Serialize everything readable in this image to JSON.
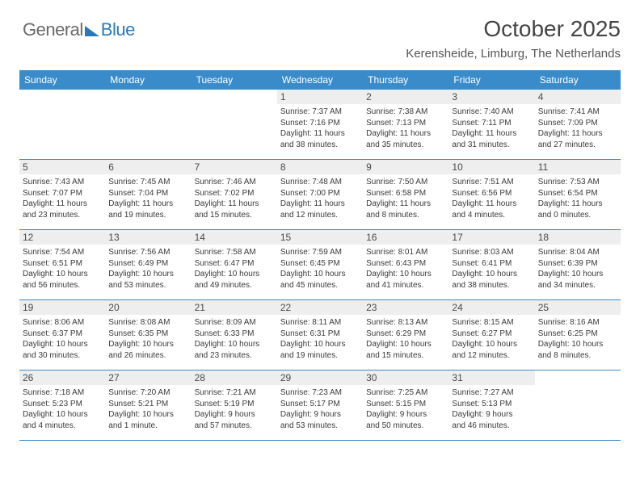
{
  "logo": {
    "text1": "General",
    "text2": "Blue"
  },
  "title": "October 2025",
  "location": "Kerensheide, Limburg, The Netherlands",
  "colors": {
    "header_bg": "#3a8bc9",
    "header_text": "#ffffff",
    "daynum_bg": "#eeeeee",
    "row_border": "#3a8bc9",
    "logo_gray": "#6a6a6a",
    "logo_blue": "#2b78bf"
  },
  "typography": {
    "title_fontsize": 28,
    "location_fontsize": 15,
    "weekday_fontsize": 12,
    "daynum_fontsize": 12,
    "info_fontsize": 10
  },
  "weekdays": [
    "Sunday",
    "Monday",
    "Tuesday",
    "Wednesday",
    "Thursday",
    "Friday",
    "Saturday"
  ],
  "rows": [
    [
      null,
      null,
      null,
      {
        "n": "1",
        "sr": "7:37 AM",
        "ss": "7:16 PM",
        "dh": "11",
        "dm": "38"
      },
      {
        "n": "2",
        "sr": "7:38 AM",
        "ss": "7:13 PM",
        "dh": "11",
        "dm": "35"
      },
      {
        "n": "3",
        "sr": "7:40 AM",
        "ss": "7:11 PM",
        "dh": "11",
        "dm": "31"
      },
      {
        "n": "4",
        "sr": "7:41 AM",
        "ss": "7:09 PM",
        "dh": "11",
        "dm": "27"
      }
    ],
    [
      {
        "n": "5",
        "sr": "7:43 AM",
        "ss": "7:07 PM",
        "dh": "11",
        "dm": "23"
      },
      {
        "n": "6",
        "sr": "7:45 AM",
        "ss": "7:04 PM",
        "dh": "11",
        "dm": "19"
      },
      {
        "n": "7",
        "sr": "7:46 AM",
        "ss": "7:02 PM",
        "dh": "11",
        "dm": "15"
      },
      {
        "n": "8",
        "sr": "7:48 AM",
        "ss": "7:00 PM",
        "dh": "11",
        "dm": "12"
      },
      {
        "n": "9",
        "sr": "7:50 AM",
        "ss": "6:58 PM",
        "dh": "11",
        "dm": "8"
      },
      {
        "n": "10",
        "sr": "7:51 AM",
        "ss": "6:56 PM",
        "dh": "11",
        "dm": "4"
      },
      {
        "n": "11",
        "sr": "7:53 AM",
        "ss": "6:54 PM",
        "dh": "11",
        "dm": "0"
      }
    ],
    [
      {
        "n": "12",
        "sr": "7:54 AM",
        "ss": "6:51 PM",
        "dh": "10",
        "dm": "56"
      },
      {
        "n": "13",
        "sr": "7:56 AM",
        "ss": "6:49 PM",
        "dh": "10",
        "dm": "53"
      },
      {
        "n": "14",
        "sr": "7:58 AM",
        "ss": "6:47 PM",
        "dh": "10",
        "dm": "49"
      },
      {
        "n": "15",
        "sr": "7:59 AM",
        "ss": "6:45 PM",
        "dh": "10",
        "dm": "45"
      },
      {
        "n": "16",
        "sr": "8:01 AM",
        "ss": "6:43 PM",
        "dh": "10",
        "dm": "41"
      },
      {
        "n": "17",
        "sr": "8:03 AM",
        "ss": "6:41 PM",
        "dh": "10",
        "dm": "38"
      },
      {
        "n": "18",
        "sr": "8:04 AM",
        "ss": "6:39 PM",
        "dh": "10",
        "dm": "34"
      }
    ],
    [
      {
        "n": "19",
        "sr": "8:06 AM",
        "ss": "6:37 PM",
        "dh": "10",
        "dm": "30"
      },
      {
        "n": "20",
        "sr": "8:08 AM",
        "ss": "6:35 PM",
        "dh": "10",
        "dm": "26"
      },
      {
        "n": "21",
        "sr": "8:09 AM",
        "ss": "6:33 PM",
        "dh": "10",
        "dm": "23"
      },
      {
        "n": "22",
        "sr": "8:11 AM",
        "ss": "6:31 PM",
        "dh": "10",
        "dm": "19"
      },
      {
        "n": "23",
        "sr": "8:13 AM",
        "ss": "6:29 PM",
        "dh": "10",
        "dm": "15"
      },
      {
        "n": "24",
        "sr": "8:15 AM",
        "ss": "6:27 PM",
        "dh": "10",
        "dm": "12"
      },
      {
        "n": "25",
        "sr": "8:16 AM",
        "ss": "6:25 PM",
        "dh": "10",
        "dm": "8"
      }
    ],
    [
      {
        "n": "26",
        "sr": "7:18 AM",
        "ss": "5:23 PM",
        "dh": "10",
        "dm": "4"
      },
      {
        "n": "27",
        "sr": "7:20 AM",
        "ss": "5:21 PM",
        "dh": "10",
        "dm": "1",
        "dm_unit": "minute"
      },
      {
        "n": "28",
        "sr": "7:21 AM",
        "ss": "5:19 PM",
        "dh": "9",
        "dm": "57"
      },
      {
        "n": "29",
        "sr": "7:23 AM",
        "ss": "5:17 PM",
        "dh": "9",
        "dm": "53"
      },
      {
        "n": "30",
        "sr": "7:25 AM",
        "ss": "5:15 PM",
        "dh": "9",
        "dm": "50"
      },
      {
        "n": "31",
        "sr": "7:27 AM",
        "ss": "5:13 PM",
        "dh": "9",
        "dm": "46"
      },
      null
    ]
  ]
}
